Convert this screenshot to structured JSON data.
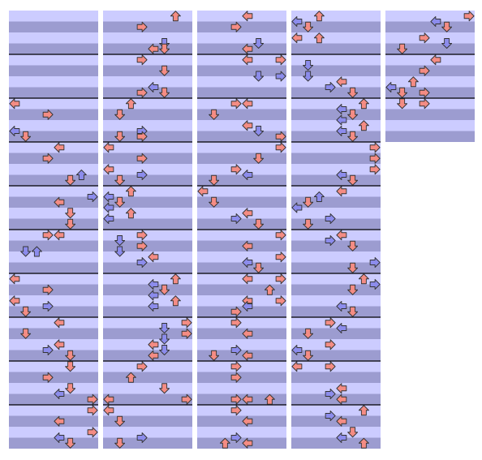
{
  "lanes": [
    "left",
    "down",
    "up",
    "right",
    "left",
    "down",
    "up",
    "right"
  ],
  "colors": {
    "beat": "#f48c84",
    "offbeat": "#8c8cec",
    "light": "#ccccff",
    "dark": "#9c9cd0",
    "measure": "#000000"
  },
  "beats_per_measure": 4,
  "columns": [
    {
      "beats": 40,
      "notes": [
        [
          8,
          0
        ],
        [
          9,
          3
        ],
        [
          10.5,
          0
        ],
        [
          11,
          1
        ],
        [
          12,
          4
        ],
        [
          13,
          3
        ],
        [
          14.5,
          6
        ],
        [
          15,
          5
        ],
        [
          16.5,
          7
        ],
        [
          17,
          4
        ],
        [
          18,
          5
        ],
        [
          19,
          5
        ],
        [
          20,
          3
        ],
        [
          20,
          4
        ],
        [
          21.5,
          1
        ],
        [
          21.5,
          2
        ],
        [
          24,
          0
        ],
        [
          25,
          3
        ],
        [
          26,
          0
        ],
        [
          26.5,
          3
        ],
        [
          27,
          1
        ],
        [
          28,
          4
        ],
        [
          29,
          1
        ],
        [
          30,
          4
        ],
        [
          30.5,
          3
        ],
        [
          31,
          5
        ],
        [
          32,
          5
        ],
        [
          33,
          3
        ],
        [
          34,
          5
        ],
        [
          34.5,
          4
        ],
        [
          35,
          7
        ],
        [
          36,
          7
        ],
        [
          37,
          4
        ],
        [
          38,
          7
        ],
        [
          38.5,
          4
        ],
        [
          39,
          5
        ]
      ]
    },
    {
      "beats": 40,
      "notes": [
        [
          0,
          6
        ],
        [
          1,
          3
        ],
        [
          2.5,
          5
        ],
        [
          3,
          4
        ],
        [
          3,
          5
        ],
        [
          4,
          3
        ],
        [
          5,
          5
        ],
        [
          6.5,
          4
        ],
        [
          7,
          5
        ],
        [
          7,
          3
        ],
        [
          8,
          2
        ],
        [
          9,
          1
        ],
        [
          10.5,
          3
        ],
        [
          11,
          1
        ],
        [
          11,
          3
        ],
        [
          12,
          0
        ],
        [
          13,
          3
        ],
        [
          14,
          0
        ],
        [
          14.5,
          3
        ],
        [
          15,
          1
        ],
        [
          16,
          2
        ],
        [
          16.5,
          0
        ],
        [
          17,
          1
        ],
        [
          17.5,
          0
        ],
        [
          18,
          2
        ],
        [
          18.5,
          0
        ],
        [
          20,
          3
        ],
        [
          20.5,
          1
        ],
        [
          21,
          3
        ],
        [
          21.5,
          1
        ],
        [
          22,
          4
        ],
        [
          22.5,
          3
        ],
        [
          24,
          6
        ],
        [
          24.5,
          4
        ],
        [
          25,
          5
        ],
        [
          25.5,
          4
        ],
        [
          26,
          6
        ],
        [
          26.5,
          4
        ],
        [
          28,
          7
        ],
        [
          28.5,
          5
        ],
        [
          29,
          7
        ],
        [
          29.5,
          5
        ],
        [
          30,
          4
        ],
        [
          30.5,
          5
        ],
        [
          31,
          4
        ],
        [
          32,
          3
        ],
        [
          33,
          2
        ],
        [
          34,
          5
        ],
        [
          35,
          7
        ],
        [
          35,
          0
        ],
        [
          36,
          0
        ],
        [
          37,
          1
        ],
        [
          38.5,
          3
        ],
        [
          39,
          1
        ]
      ]
    },
    {
      "beats": 40,
      "notes": [
        [
          0,
          4
        ],
        [
          1,
          3
        ],
        [
          2.5,
          5
        ],
        [
          3,
          4
        ],
        [
          4,
          4
        ],
        [
          4,
          7
        ],
        [
          5.5,
          5
        ],
        [
          5.5,
          7
        ],
        [
          8,
          3
        ],
        [
          8,
          4
        ],
        [
          9,
          1
        ],
        [
          10,
          4
        ],
        [
          10.5,
          5
        ],
        [
          11,
          7
        ],
        [
          12,
          7
        ],
        [
          13,
          5
        ],
        [
          14,
          3
        ],
        [
          14.5,
          4
        ],
        [
          15,
          1
        ],
        [
          16,
          0
        ],
        [
          17,
          1
        ],
        [
          18,
          4
        ],
        [
          18.5,
          3
        ],
        [
          19,
          5
        ],
        [
          20,
          7
        ],
        [
          21,
          4
        ],
        [
          22,
          7
        ],
        [
          22.5,
          4
        ],
        [
          23,
          5
        ],
        [
          24,
          4
        ],
        [
          24,
          7
        ],
        [
          25,
          6
        ],
        [
          26,
          4
        ],
        [
          26,
          7
        ],
        [
          26.5,
          4
        ],
        [
          27,
          3
        ],
        [
          28,
          3
        ],
        [
          29,
          4
        ],
        [
          30.5,
          3
        ],
        [
          31,
          4
        ],
        [
          31,
          1
        ],
        [
          32,
          3
        ],
        [
          33,
          3
        ],
        [
          35,
          3
        ],
        [
          35,
          4
        ],
        [
          35,
          6
        ],
        [
          36,
          3
        ],
        [
          37,
          4
        ],
        [
          38.5,
          3
        ],
        [
          39,
          2
        ],
        [
          39,
          4
        ]
      ]
    },
    {
      "beats": 40,
      "notes": [
        [
          0,
          2
        ],
        [
          0.5,
          0
        ],
        [
          1,
          1
        ],
        [
          2,
          2
        ],
        [
          2,
          0
        ],
        [
          4.5,
          1
        ],
        [
          5.5,
          1
        ],
        [
          6,
          4
        ],
        [
          6.5,
          3
        ],
        [
          7,
          5
        ],
        [
          8,
          6
        ],
        [
          8.5,
          4
        ],
        [
          9,
          5
        ],
        [
          9.5,
          4
        ],
        [
          10,
          6
        ],
        [
          10.5,
          4
        ],
        [
          11,
          5
        ],
        [
          12,
          7
        ],
        [
          13,
          7
        ],
        [
          14,
          7
        ],
        [
          14.5,
          4
        ],
        [
          15,
          5
        ],
        [
          16,
          4
        ],
        [
          16.5,
          2
        ],
        [
          17,
          1
        ],
        [
          17.5,
          0
        ],
        [
          18.5,
          3
        ],
        [
          19,
          1
        ],
        [
          20,
          4
        ],
        [
          20.5,
          3
        ],
        [
          21,
          5
        ],
        [
          22.5,
          7
        ],
        [
          23,
          5
        ],
        [
          24,
          6
        ],
        [
          24.5,
          7
        ],
        [
          25,
          5
        ],
        [
          26.5,
          4
        ],
        [
          27,
          5
        ],
        [
          28,
          3
        ],
        [
          28.5,
          4
        ],
        [
          29,
          1
        ],
        [
          30,
          3
        ],
        [
          30.5,
          0
        ],
        [
          31,
          1
        ],
        [
          32,
          0
        ],
        [
          32,
          3
        ],
        [
          34,
          4
        ],
        [
          34.5,
          3
        ],
        [
          35,
          4
        ],
        [
          36,
          6
        ],
        [
          36.5,
          3
        ],
        [
          37,
          4
        ],
        [
          38,
          5
        ],
        [
          38.5,
          4
        ],
        [
          39,
          6
        ]
      ]
    },
    {
      "beats": 12,
      "notes": [
        [
          0,
          7
        ],
        [
          0.5,
          4
        ],
        [
          1,
          5
        ],
        [
          2,
          3
        ],
        [
          2.5,
          5
        ],
        [
          3,
          1
        ],
        [
          4,
          4
        ],
        [
          5,
          3
        ],
        [
          6,
          2
        ],
        [
          6.5,
          0
        ],
        [
          7,
          1
        ],
        [
          7,
          3
        ],
        [
          8,
          1
        ],
        [
          8,
          3
        ]
      ]
    }
  ]
}
